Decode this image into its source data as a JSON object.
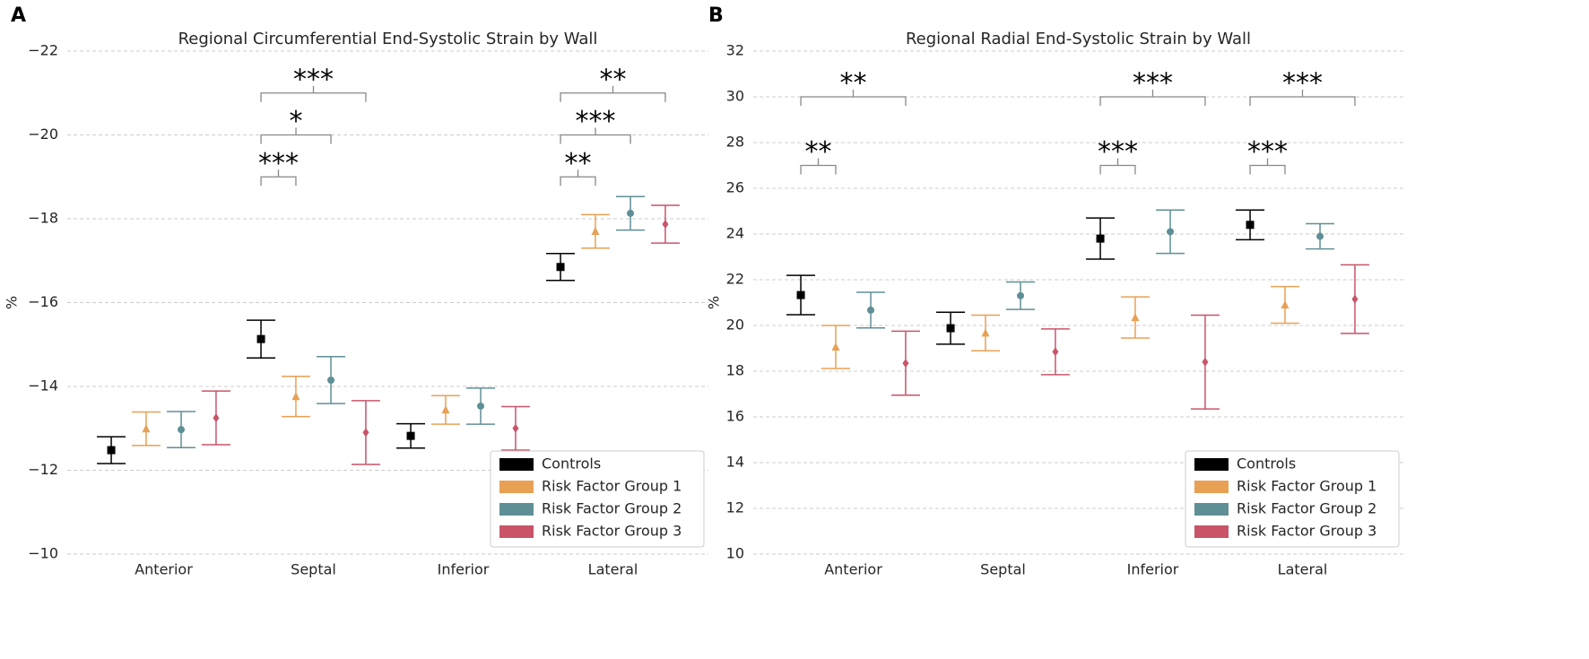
{
  "chart_data": [
    {
      "type": "errorbar",
      "panel_label": "A",
      "title": "Regional Circumferential End-Systolic Strain by Wall",
      "ylabel": "%",
      "categories": [
        "Anterior",
        "Septal",
        "Inferior",
        "Lateral"
      ],
      "ylim": [
        -10,
        -22
      ],
      "yticks": [
        {
          "value": -22,
          "label": "−22"
        },
        {
          "value": -20,
          "label": "−20"
        },
        {
          "value": -18,
          "label": "−18"
        },
        {
          "value": -16,
          "label": "−16"
        },
        {
          "value": -14,
          "label": "−14"
        },
        {
          "value": -12,
          "label": "−12"
        },
        {
          "value": -10,
          "label": "−10"
        }
      ],
      "grid": true,
      "legend": "lower right",
      "series": [
        {
          "name": "Controls",
          "color": "#000000",
          "marker": "square",
          "values": [
            -12.48,
            -15.13,
            -12.82,
            -16.85
          ],
          "errors": [
            0.32,
            0.45,
            0.29,
            0.32
          ]
        },
        {
          "name": "Risk Factor Group 1",
          "color": "#e8a055",
          "marker": "triangle",
          "values": [
            -12.99,
            -13.76,
            -13.44,
            -17.7
          ],
          "errors": [
            0.4,
            0.48,
            0.34,
            0.4
          ]
        },
        {
          "name": "Risk Factor Group 2",
          "color": "#5f8f96",
          "marker": "circle",
          "values": [
            -12.97,
            -14.15,
            -13.53,
            -18.13
          ],
          "errors": [
            0.43,
            0.56,
            0.43,
            0.4
          ]
        },
        {
          "name": "Risk Factor Group 3",
          "color": "#c9546a",
          "marker": "diamond",
          "values": [
            -13.25,
            -12.9,
            -13.0,
            -17.87
          ],
          "errors": [
            0.64,
            0.76,
            0.52,
            0.45
          ]
        }
      ],
      "annotations": [
        {
          "text": "***",
          "category": 1,
          "from": 0,
          "to": 1,
          "y": -19
        },
        {
          "text": "*",
          "category": 1,
          "from": 0,
          "to": 2,
          "y": -20
        },
        {
          "text": "***",
          "category": 1,
          "from": 0,
          "to": 3,
          "y": -21
        },
        {
          "text": "**",
          "category": 3,
          "from": 0,
          "to": 1,
          "y": -19
        },
        {
          "text": "***",
          "category": 3,
          "from": 0,
          "to": 2,
          "y": -20
        },
        {
          "text": "**",
          "category": 3,
          "from": 0,
          "to": 3,
          "y": -21
        }
      ]
    },
    {
      "type": "errorbar",
      "panel_label": "B",
      "title": "Regional Radial End-Systolic Strain by Wall",
      "ylabel": "%",
      "categories": [
        "Anterior",
        "Septal",
        "Inferior",
        "Lateral"
      ],
      "ylim": [
        10,
        32
      ],
      "yticks": [
        10,
        12,
        14,
        16,
        18,
        20,
        22,
        24,
        26,
        28,
        30,
        32
      ],
      "grid": true,
      "legend": "lower right",
      "series": [
        {
          "name": "Controls",
          "color": "#000000",
          "marker": "square",
          "values": [
            21.33,
            19.88,
            23.8,
            24.4
          ],
          "errors": [
            0.86,
            0.7,
            0.9,
            0.65
          ]
        },
        {
          "name": "Risk Factor Group 1",
          "color": "#e8a055",
          "marker": "triangle",
          "values": [
            19.06,
            19.67,
            20.35,
            20.9
          ],
          "errors": [
            0.94,
            0.78,
            0.9,
            0.8
          ]
        },
        {
          "name": "Risk Factor Group 2",
          "color": "#5f8f96",
          "marker": "circle",
          "values": [
            20.67,
            21.3,
            24.1,
            23.9
          ],
          "errors": [
            0.78,
            0.6,
            0.95,
            0.55
          ]
        },
        {
          "name": "Risk Factor Group 3",
          "color": "#c9546a",
          "marker": "diamond",
          "values": [
            18.35,
            18.85,
            18.4,
            21.15
          ],
          "errors": [
            1.4,
            1.0,
            2.05,
            1.5
          ]
        }
      ],
      "annotations": [
        {
          "text": "**",
          "category": 0,
          "from": 0,
          "to": 1,
          "y": 27
        },
        {
          "text": "**",
          "category": 0,
          "from": 0,
          "to": 3,
          "y": 30
        },
        {
          "text": "***",
          "category": 2,
          "from": 0,
          "to": 1,
          "y": 27
        },
        {
          "text": "***",
          "category": 2,
          "from": 0,
          "to": 3,
          "y": 30
        },
        {
          "text": "***",
          "category": 3,
          "from": 0,
          "to": 1,
          "y": 27
        },
        {
          "text": "***",
          "category": 3,
          "from": 0,
          "to": 3,
          "y": 30
        }
      ]
    }
  ]
}
